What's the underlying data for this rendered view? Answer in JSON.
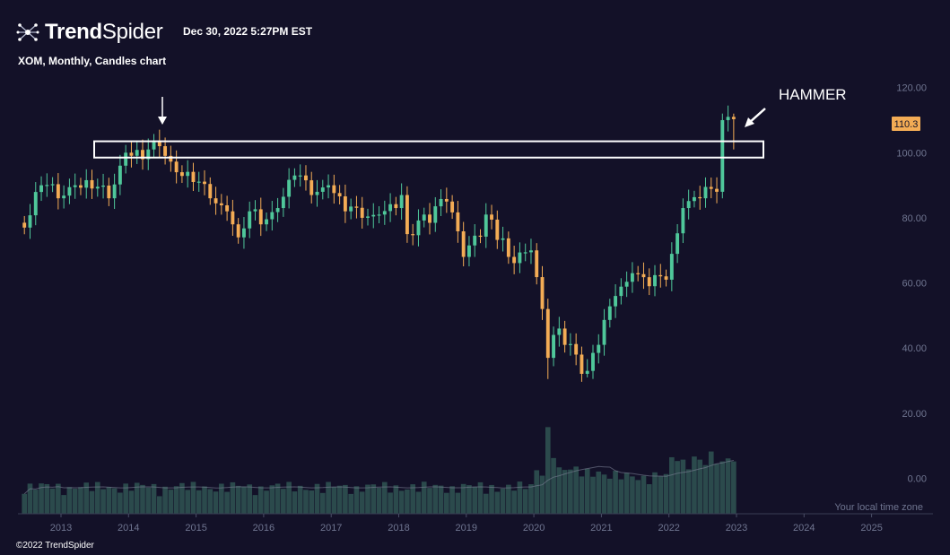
{
  "header": {
    "brand_bold": "Trend",
    "brand_light": "Spider",
    "timestamp": "Dec 30, 2022 5:27PM EST",
    "subtitle": "XOM, Monthly, Candles chart"
  },
  "footer": {
    "copyright": "©2022 TrendSpider"
  },
  "colors": {
    "background": "#131128",
    "up": "#4fc79a",
    "down": "#f3ac55",
    "volume": "#2b4a4c",
    "price_tag": "#f3ac55"
  },
  "icons": {
    "logo": "trendspider-spider-icon",
    "arrow": "arrow-down-icon"
  },
  "chart_data": {
    "type": "candlestick",
    "title": "XOM, Monthly, Candles chart",
    "y_ticks": [
      "120.00",
      "100.00",
      "80.00",
      "60.00",
      "40.00",
      "20.00",
      "0.00"
    ],
    "ylim": [
      0,
      120
    ],
    "x_ticks": [
      "2013",
      "2014",
      "2015",
      "2016",
      "2017",
      "2018",
      "2019",
      "2020",
      "2021",
      "2022",
      "2023",
      "2024",
      "2025"
    ],
    "timezone_label": "Your local time zone",
    "last_price": "110.3",
    "resistance_zone": {
      "low": 98.5,
      "high": 103.5
    },
    "annotations": [
      {
        "text": "HAMMER",
        "target": "Dec 2022 candle"
      }
    ],
    "pivots": [
      [
        "2012-06",
        77
      ],
      [
        "2012-09",
        90
      ],
      [
        "2012-12",
        86
      ],
      [
        "2013-03",
        90
      ],
      [
        "2013-06",
        89
      ],
      [
        "2013-09",
        86
      ],
      [
        "2013-12",
        100
      ],
      [
        "2014-03",
        98
      ],
      [
        "2014-06",
        102
      ],
      [
        "2014-09",
        94
      ],
      [
        "2014-12",
        91
      ],
      [
        "2015-03",
        86
      ],
      [
        "2015-06",
        82
      ],
      [
        "2015-08",
        74
      ],
      [
        "2015-10",
        82
      ],
      [
        "2015-12",
        78
      ],
      [
        "2016-03",
        83
      ],
      [
        "2016-06",
        93
      ],
      [
        "2016-09",
        87
      ],
      [
        "2016-12",
        90
      ],
      [
        "2017-03",
        82
      ],
      [
        "2017-06",
        80
      ],
      [
        "2017-09",
        81
      ],
      [
        "2017-12",
        83
      ],
      [
        "2018-01",
        87
      ],
      [
        "2018-02",
        75
      ],
      [
        "2018-05",
        81
      ],
      [
        "2018-09",
        85
      ],
      [
        "2018-12",
        68
      ],
      [
        "2019-04",
        81
      ],
      [
        "2019-08",
        68
      ],
      [
        "2019-12",
        70
      ],
      [
        "2020-02",
        52
      ],
      [
        "2020-03",
        37
      ],
      [
        "2020-05",
        46
      ],
      [
        "2020-10",
        33
      ],
      [
        "2020-12",
        41
      ],
      [
        "2021-03",
        56
      ],
      [
        "2021-06",
        63
      ],
      [
        "2021-09",
        59
      ],
      [
        "2021-12",
        61
      ],
      [
        "2022-03",
        83
      ],
      [
        "2022-06",
        86
      ],
      [
        "2022-09",
        88
      ],
      [
        "2022-10",
        110
      ],
      [
        "2022-11",
        111
      ],
      [
        "2022-12",
        110.3
      ]
    ]
  }
}
